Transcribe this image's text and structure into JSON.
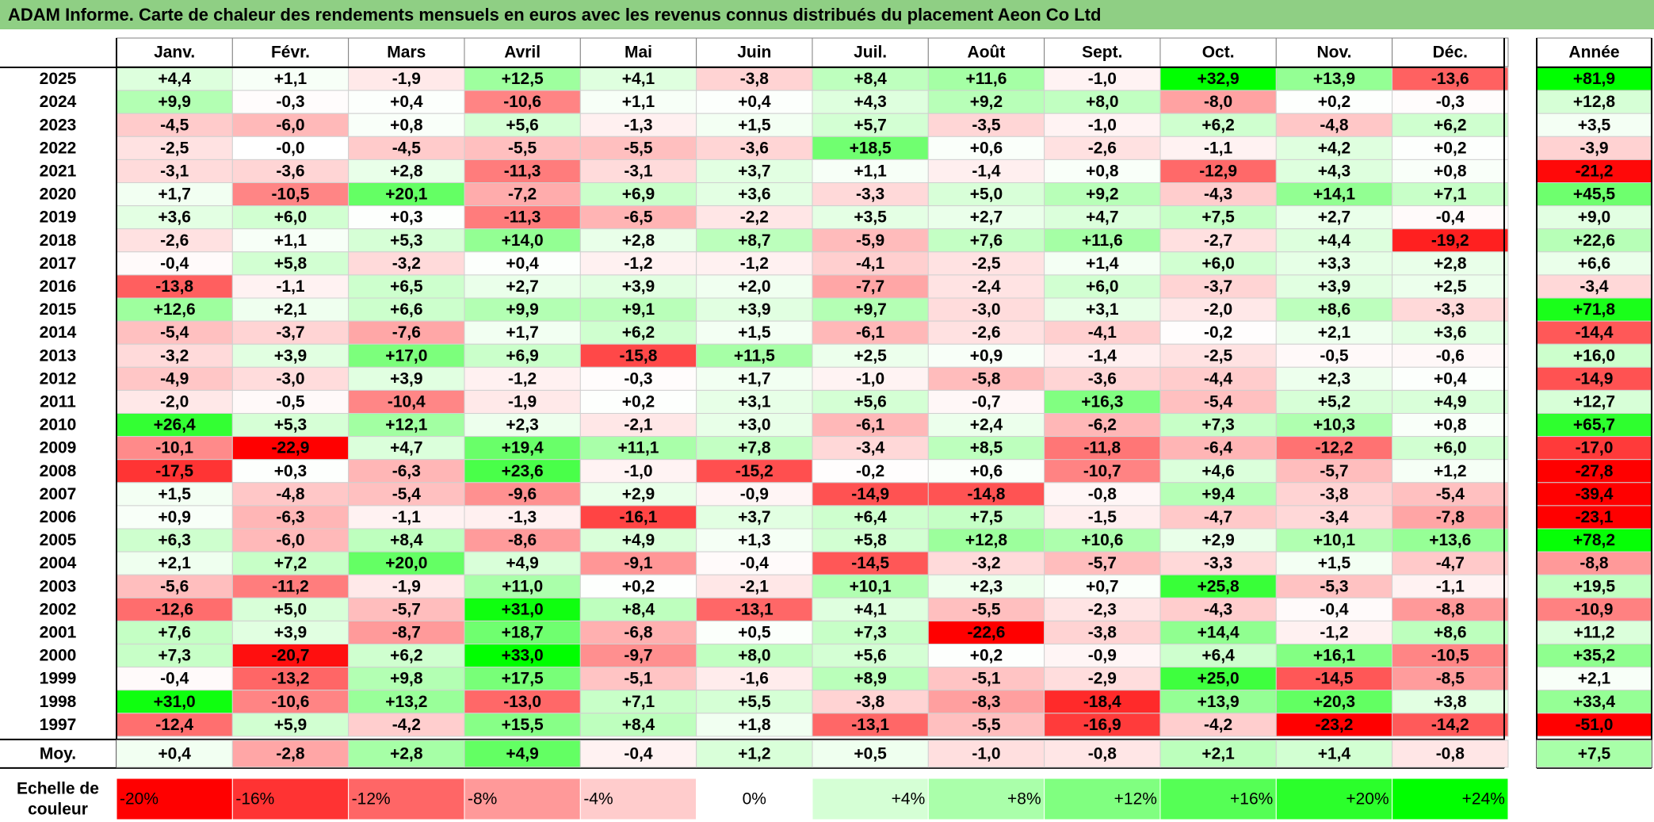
{
  "title": "ADAM Informe. Carte de chaleur des rendements mensuels en euros avec les revenus connus distribués du placement Aeon Co Ltd",
  "year_header": "Année",
  "avg_label": "Moy.",
  "scale_label_line1": "Echelle de",
  "scale_label_line2": "couleur",
  "colors": {
    "neg_max": "#ff0000",
    "pos_max": "#00ff00",
    "neutral": "#ffffff",
    "title_bg": "#8fcf84"
  },
  "chart_data": {
    "type": "heatmap",
    "x": [
      "Janv.",
      "Févr.",
      "Mars",
      "Avril",
      "Mai",
      "Juin",
      "Juil.",
      "Août",
      "Sept.",
      "Oct.",
      "Nov.",
      "Déc."
    ],
    "y": [
      "2025",
      "2024",
      "2023",
      "2022",
      "2021",
      "2020",
      "2019",
      "2018",
      "2017",
      "2016",
      "2015",
      "2014",
      "2013",
      "2012",
      "2011",
      "2010",
      "2009",
      "2008",
      "2007",
      "2006",
      "2005",
      "2004",
      "2003",
      "2002",
      "2001",
      "2000",
      "1999",
      "1998",
      "1997"
    ],
    "values": [
      [
        "+4,4",
        "+1,1",
        "-1,9",
        "+12,5",
        "+4,1",
        "-3,8",
        "+8,4",
        "+11,6",
        "-1,0",
        "+32,9",
        "+13,9",
        "-13,6"
      ],
      [
        "+9,9",
        "-0,3",
        "+0,4",
        "-10,6",
        "+1,1",
        "+0,4",
        "+4,3",
        "+9,2",
        "+8,0",
        "-8,0",
        "+0,2",
        "-0,3"
      ],
      [
        "-4,5",
        "-6,0",
        "+0,8",
        "+5,6",
        "-1,3",
        "+1,5",
        "+5,7",
        "-3,5",
        "-1,0",
        "+6,2",
        "-4,8",
        "+6,2"
      ],
      [
        "-2,5",
        "-0,0",
        "-4,5",
        "-5,5",
        "-5,5",
        "-3,6",
        "+18,5",
        "+0,6",
        "-2,6",
        "-1,1",
        "+4,2",
        "+0,2"
      ],
      [
        "-3,1",
        "-3,6",
        "+2,8",
        "-11,3",
        "-3,1",
        "+3,7",
        "+1,1",
        "-1,4",
        "+0,8",
        "-12,9",
        "+4,3",
        "+0,8"
      ],
      [
        "+1,7",
        "-10,5",
        "+20,1",
        "-7,2",
        "+6,9",
        "+3,6",
        "-3,3",
        "+5,0",
        "+9,2",
        "-4,3",
        "+14,1",
        "+7,1"
      ],
      [
        "+3,6",
        "+6,0",
        "+0,3",
        "-11,3",
        "-6,5",
        "-2,2",
        "+3,5",
        "+2,7",
        "+4,7",
        "+7,5",
        "+2,7",
        "-0,4"
      ],
      [
        "-2,6",
        "+1,1",
        "+5,3",
        "+14,0",
        "+2,8",
        "+8,7",
        "-5,9",
        "+7,6",
        "+11,6",
        "-2,7",
        "+4,4",
        "-19,2"
      ],
      [
        "-0,4",
        "+5,8",
        "-3,2",
        "+0,4",
        "-1,2",
        "-1,2",
        "-4,1",
        "-2,5",
        "+1,4",
        "+6,0",
        "+3,3",
        "+2,8"
      ],
      [
        "-13,8",
        "-1,1",
        "+6,5",
        "+2,7",
        "+3,9",
        "+2,0",
        "-7,7",
        "-2,4",
        "+6,0",
        "-3,7",
        "+3,9",
        "+2,5"
      ],
      [
        "+12,6",
        "+2,1",
        "+6,6",
        "+9,9",
        "+9,1",
        "+3,9",
        "+9,7",
        "-3,0",
        "+3,1",
        "-2,0",
        "+8,6",
        "-3,3"
      ],
      [
        "-5,4",
        "-3,7",
        "-7,6",
        "+1,7",
        "+6,2",
        "+1,5",
        "-6,1",
        "-2,6",
        "-4,1",
        "-0,2",
        "+2,1",
        "+3,6"
      ],
      [
        "-3,2",
        "+3,9",
        "+17,0",
        "+6,9",
        "-15,8",
        "+11,5",
        "+2,5",
        "+0,9",
        "-1,4",
        "-2,5",
        "-0,5",
        "-0,6"
      ],
      [
        "-4,9",
        "-3,0",
        "+3,9",
        "-1,2",
        "-0,3",
        "+1,7",
        "-1,0",
        "-5,8",
        "-3,6",
        "-4,4",
        "+2,3",
        "+0,4"
      ],
      [
        "-2,0",
        "-0,5",
        "-10,4",
        "-1,9",
        "+0,2",
        "+3,1",
        "+5,6",
        "-0,7",
        "+16,3",
        "-5,4",
        "+5,2",
        "+4,9"
      ],
      [
        "+26,4",
        "+5,3",
        "+12,1",
        "+2,3",
        "-2,1",
        "+3,0",
        "-6,1",
        "+2,4",
        "-6,2",
        "+7,3",
        "+10,3",
        "+0,8"
      ],
      [
        "-10,1",
        "-22,9",
        "+4,7",
        "+19,4",
        "+11,1",
        "+7,8",
        "-3,4",
        "+8,5",
        "-11,8",
        "-6,4",
        "-12,2",
        "+6,0"
      ],
      [
        "-17,5",
        "+0,3",
        "-6,3",
        "+23,6",
        "-1,0",
        "-15,2",
        "-0,2",
        "+0,6",
        "-10,7",
        "+4,6",
        "-5,7",
        "+1,2"
      ],
      [
        "+1,5",
        "-4,8",
        "-5,4",
        "-9,6",
        "+2,9",
        "-0,9",
        "-14,9",
        "-14,8",
        "-0,8",
        "+9,4",
        "-3,8",
        "-5,4"
      ],
      [
        "+0,9",
        "-6,3",
        "-1,1",
        "-1,3",
        "-16,1",
        "+3,7",
        "+6,4",
        "+7,5",
        "-1,5",
        "-4,7",
        "-3,4",
        "-7,8"
      ],
      [
        "+6,3",
        "-6,0",
        "+8,4",
        "-8,6",
        "+4,9",
        "+1,3",
        "+5,8",
        "+12,8",
        "+10,6",
        "+2,9",
        "+10,1",
        "+13,6"
      ],
      [
        "+2,1",
        "+7,2",
        "+20,0",
        "+4,9",
        "-9,1",
        "-0,4",
        "-14,5",
        "-3,2",
        "-5,7",
        "-3,3",
        "+1,5",
        "-4,7"
      ],
      [
        "-5,6",
        "-11,2",
        "-1,9",
        "+11,0",
        "+0,2",
        "-2,1",
        "+10,1",
        "+2,3",
        "+0,7",
        "+25,8",
        "-5,3",
        "-1,1"
      ],
      [
        "-12,6",
        "+5,0",
        "-5,7",
        "+31,0",
        "+8,4",
        "-13,1",
        "+4,1",
        "-5,5",
        "-2,3",
        "-4,3",
        "-0,4",
        "-8,8"
      ],
      [
        "+7,6",
        "+3,9",
        "-8,7",
        "+18,7",
        "-6,8",
        "+0,5",
        "+7,3",
        "-22,6",
        "-3,8",
        "+14,4",
        "-1,2",
        "+8,6"
      ],
      [
        "+7,3",
        "-20,7",
        "+6,2",
        "+33,0",
        "-9,7",
        "+8,0",
        "+5,6",
        "+0,2",
        "-0,9",
        "+6,4",
        "+16,1",
        "-10,5"
      ],
      [
        "-0,4",
        "-13,2",
        "+9,8",
        "+17,5",
        "-5,1",
        "-1,6",
        "+8,9",
        "-5,1",
        "-2,9",
        "+25,0",
        "-14,5",
        "-8,5"
      ],
      [
        "+31,0",
        "-10,6",
        "+13,2",
        "-13,0",
        "+7,1",
        "+5,5",
        "-3,8",
        "-8,3",
        "-18,4",
        "+13,9",
        "+20,3",
        "+3,8"
      ],
      [
        "-12,4",
        "+5,9",
        "-4,2",
        "+15,5",
        "+8,4",
        "+1,8",
        "-13,1",
        "-5,5",
        "-16,9",
        "-4,2",
        "-23,2",
        "-14,2"
      ]
    ],
    "year_totals": [
      "+81,9",
      "+12,8",
      "+3,5",
      "-3,9",
      "-21,2",
      "+45,5",
      "+9,0",
      "+22,6",
      "+6,6",
      "-3,4",
      "+71,8",
      "-14,4",
      "+16,0",
      "-14,9",
      "+12,7",
      "+65,7",
      "-17,0",
      "-27,8",
      "-39,4",
      "-23,1",
      "+78,2",
      "-8,8",
      "+19,5",
      "-10,9",
      "+11,2",
      "+35,2",
      "+2,1",
      "+33,4",
      "-51,0"
    ],
    "averages": [
      "+0,4",
      "-2,8",
      "+2,8",
      "+4,9",
      "-0,4",
      "+1,2",
      "+0,5",
      "-1,0",
      "-0,8",
      "+2,1",
      "+1,4",
      "-0,8"
    ],
    "average_total": "+7,5",
    "scale": [
      "-20%",
      "-16%",
      "-12%",
      "-8%",
      "-4%",
      "0%",
      "+4%",
      "+8%",
      "+12%",
      "+16%",
      "+20%",
      "+24%"
    ]
  }
}
